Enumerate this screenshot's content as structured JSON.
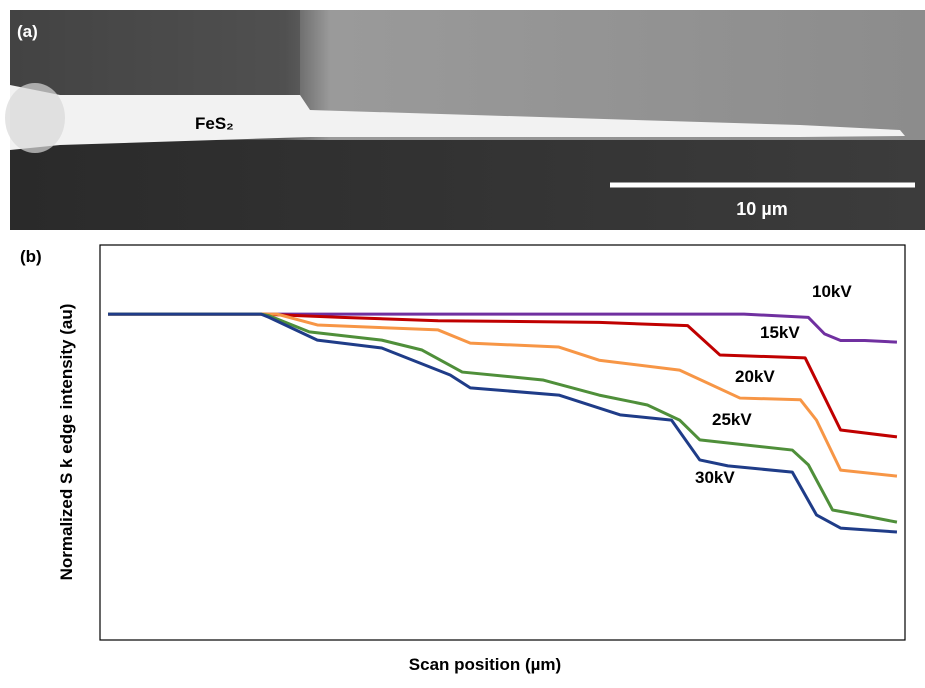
{
  "image_panel": {
    "label": "(a)",
    "material": "FeS₂",
    "scale_bar": "10 µm"
  },
  "chart_data": {
    "type": "line",
    "panel_label": "(b)",
    "x_label": "Scan position (µm)",
    "y_label": "Normalized S k edge intensity (au)",
    "xlim": [
      0,
      100
    ],
    "ylim": [
      0,
      1.2
    ],
    "series": [
      {
        "name": "10kV",
        "color": "#7030a0",
        "x": [
          1,
          10,
          20,
          30,
          40,
          50,
          60,
          70,
          80,
          88,
          90,
          92,
          95,
          99
        ],
        "values": [
          0.99,
          0.99,
          0.99,
          0.99,
          0.99,
          0.99,
          0.99,
          0.99,
          0.99,
          0.98,
          0.93,
          0.91,
          0.91,
          0.905
        ]
      },
      {
        "name": "15kV",
        "color": "#c00000",
        "x": [
          1,
          20,
          30,
          42,
          62,
          73,
          77,
          87.6,
          92,
          99
        ],
        "values": [
          0.99,
          0.99,
          0.98,
          0.97,
          0.965,
          0.955,
          0.866,
          0.857,
          0.638,
          0.617
        ]
      },
      {
        "name": "20kV",
        "color": "#f79646",
        "x": [
          1,
          20,
          22,
          27,
          42,
          46,
          57,
          62,
          72,
          79.5,
          87,
          89,
          92,
          99
        ],
        "values": [
          0.99,
          0.99,
          0.99,
          0.957,
          0.942,
          0.902,
          0.89,
          0.85,
          0.82,
          0.735,
          0.73,
          0.668,
          0.516,
          0.498
        ]
      },
      {
        "name": "25kV",
        "color": "#4f8f3a",
        "x": [
          1,
          20,
          21,
          26,
          35,
          40,
          45,
          55,
          62,
          68,
          72,
          74.5,
          86,
          88,
          91,
          94.4,
          99
        ],
        "values": [
          0.99,
          0.99,
          0.985,
          0.936,
          0.911,
          0.881,
          0.814,
          0.79,
          0.744,
          0.714,
          0.668,
          0.608,
          0.577,
          0.532,
          0.395,
          0.38,
          0.358
        ]
      },
      {
        "name": "30kV",
        "color": "#1f3c88",
        "x": [
          1,
          20,
          21,
          27,
          35,
          43.5,
          46,
          57,
          64.6,
          71,
          74.5,
          78,
          86,
          89,
          92,
          99
        ],
        "values": [
          0.99,
          0.99,
          0.98,
          0.911,
          0.887,
          0.805,
          0.766,
          0.744,
          0.684,
          0.668,
          0.547,
          0.529,
          0.51,
          0.38,
          0.34,
          0.328
        ]
      }
    ]
  }
}
